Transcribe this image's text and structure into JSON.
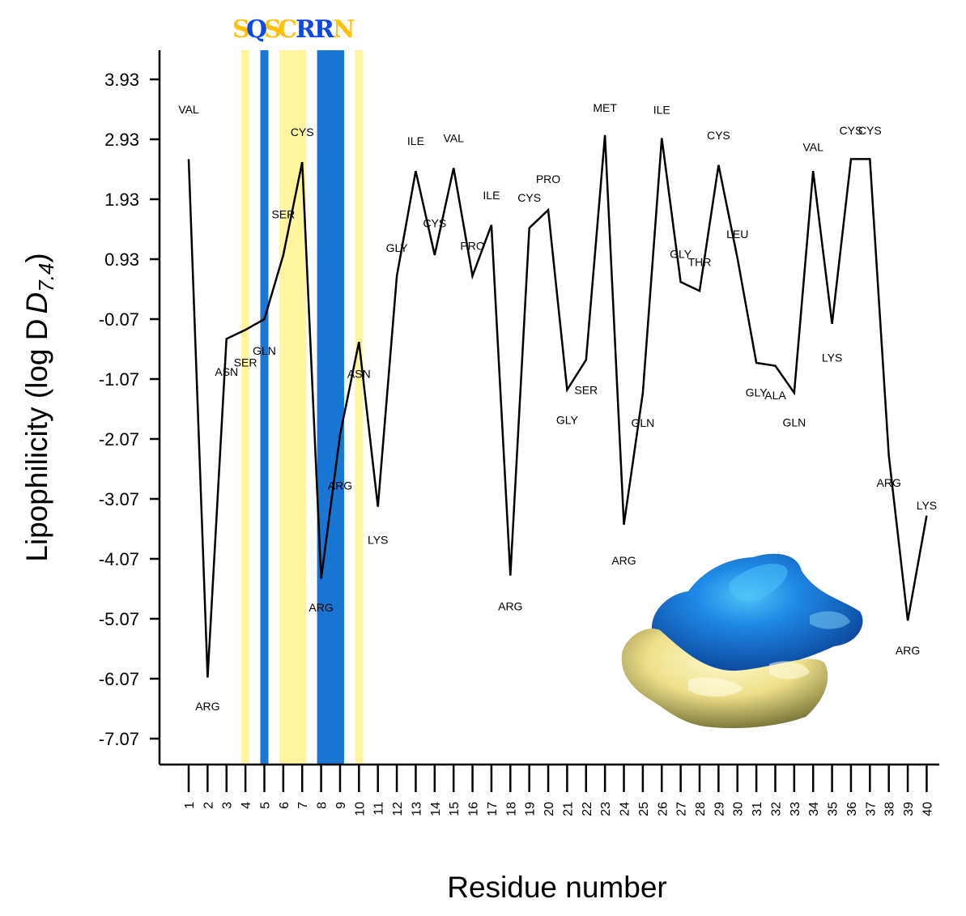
{
  "chart_data": {
    "type": "line",
    "title": "",
    "xlabel": "Residue number",
    "ylabel": "Lipophilicity (log D",
    "ylabel_sub": "7.4",
    "ylabel_close": ")",
    "ylim": [
      -7.5,
      4.4
    ],
    "xlim": [
      1,
      40
    ],
    "y_ticks": [
      3.93,
      2.93,
      1.93,
      0.93,
      -0.07,
      -1.07,
      -2.07,
      -3.07,
      -4.07,
      -5.07,
      -6.07,
      -7.07
    ],
    "y_tick_labels": [
      "3.93",
      "2.93",
      "1.93",
      "0.93",
      "-0.07",
      "-1.07",
      "-2.07",
      "-3.07",
      "-4.07",
      "-5.07",
      "-6.07",
      "-7.07"
    ],
    "x": [
      1,
      2,
      3,
      4,
      5,
      6,
      7,
      8,
      9,
      10,
      11,
      12,
      13,
      14,
      15,
      16,
      17,
      18,
      19,
      20,
      21,
      22,
      23,
      24,
      25,
      26,
      27,
      28,
      29,
      30,
      31,
      32,
      33,
      34,
      35,
      36,
      37,
      38,
      39,
      40
    ],
    "x_tick_labels": [
      "1",
      "2",
      "3",
      "4",
      "5",
      "6",
      "7",
      "8",
      "9",
      "10",
      "11",
      "12",
      "13",
      "14",
      "15",
      "16",
      "17",
      "18",
      "19",
      "20",
      "21",
      "22",
      "23",
      "24",
      "25",
      "26",
      "27",
      "28",
      "29",
      "30",
      "31",
      "32",
      "33",
      "34",
      "35",
      "36",
      "37",
      "38",
      "39",
      "40"
    ],
    "series": [
      {
        "values": [
          2.6,
          -6.05,
          -0.4,
          -0.25,
          -0.07,
          1.0,
          2.55,
          -4.4,
          -2.0,
          -0.45,
          -3.2,
          0.65,
          2.4,
          1.0,
          2.45,
          0.65,
          1.5,
          -4.35,
          1.45,
          1.75,
          -1.25,
          -0.75,
          3.0,
          -3.5,
          -1.3,
          2.95,
          0.55,
          0.4,
          2.5,
          0.95,
          -0.8,
          -0.85,
          -1.3,
          2.4,
          -0.15,
          2.6,
          2.6,
          -2.35,
          -5.1,
          -3.35
        ]
      }
    ],
    "residue_labels": [
      {
        "x": 1,
        "text": "VAL",
        "y": 3.43
      },
      {
        "x": 2,
        "text": "ARG",
        "y": -6.53
      },
      {
        "x": 3,
        "text": "ASN",
        "y": -0.95
      },
      {
        "x": 4,
        "text": "SER",
        "y": -0.79
      },
      {
        "x": 5,
        "text": "GLN",
        "y": -0.6
      },
      {
        "x": 6,
        "text": "SER",
        "y": 1.68
      },
      {
        "x": 7,
        "text": "CYS",
        "y": 3.05
      },
      {
        "x": 8,
        "text": "ARG",
        "y": -4.88
      },
      {
        "x": 9,
        "text": "ARG",
        "y": -2.85
      },
      {
        "x": 10,
        "text": "ASN",
        "y": -0.98
      },
      {
        "x": 11,
        "text": "LYS",
        "y": -3.75
      },
      {
        "x": 12,
        "text": "GLY",
        "y": 1.12
      },
      {
        "x": 13,
        "text": "ILE",
        "y": 2.9
      },
      {
        "x": 14,
        "text": "CYS",
        "y": 1.53
      },
      {
        "x": 15,
        "text": "VAL",
        "y": 2.95
      },
      {
        "x": 16,
        "text": "PRO",
        "y": 1.15
      },
      {
        "x": 17,
        "text": "ILE",
        "y": 2.0
      },
      {
        "x": 18,
        "text": "ARG",
        "y": -4.86
      },
      {
        "x": 19,
        "text": "CYS",
        "y": 1.96
      },
      {
        "x": 20,
        "text": "PRO",
        "y": 2.27
      },
      {
        "x": 21,
        "text": "GLY",
        "y": -1.75
      },
      {
        "x": 22,
        "text": "SER",
        "y": -1.25
      },
      {
        "x": 23,
        "text": "MET",
        "y": 3.46
      },
      {
        "x": 24,
        "text": "ARG",
        "y": -4.1
      },
      {
        "x": 25,
        "text": "GLN",
        "y": -1.8
      },
      {
        "x": 26,
        "text": "ILE",
        "y": 3.42
      },
      {
        "x": 27,
        "text": "GLY",
        "y": 1.02
      },
      {
        "x": 28,
        "text": "THR",
        "y": 0.88
      },
      {
        "x": 29,
        "text": "CYS",
        "y": 3.0
      },
      {
        "x": 30,
        "text": "LEU",
        "y": 1.35
      },
      {
        "x": 31,
        "text": "GLY",
        "y": -1.29
      },
      {
        "x": 32,
        "text": "ALA",
        "y": -1.34
      },
      {
        "x": 33,
        "text": "GLN",
        "y": -1.79
      },
      {
        "x": 34,
        "text": "VAL",
        "y": 2.8
      },
      {
        "x": 35,
        "text": "LYS",
        "y": -0.71
      },
      {
        "x": 36,
        "text": "CYS",
        "y": 3.08
      },
      {
        "x": 37,
        "text": "CYS",
        "y": 3.08
      },
      {
        "x": 38,
        "text": "ARG",
        "y": -2.8
      },
      {
        "x": 39,
        "text": "ARG",
        "y": -5.6
      },
      {
        "x": 40,
        "text": "LYS",
        "y": -3.18
      }
    ],
    "highlight_bands": [
      {
        "x_from": 4,
        "x_to": 4,
        "color": "#fff59d"
      },
      {
        "x_from": 5,
        "x_to": 5,
        "color": "#1976d2"
      },
      {
        "x_from": 6,
        "x_to": 7,
        "color": "#fff59d"
      },
      {
        "x_from": 8,
        "x_to": 9,
        "color": "#1976d2"
      },
      {
        "x_from": 10,
        "x_to": 10,
        "color": "#fff59d"
      }
    ],
    "sequence_letters": [
      {
        "text": "S",
        "color": "#ffc107"
      },
      {
        "text": "Q",
        "color": "#0d47e8"
      },
      {
        "text": "S",
        "color": "#ffc107"
      },
      {
        "text": "C",
        "color": "#ffc107"
      },
      {
        "text": "R",
        "color": "#0d47e8"
      },
      {
        "text": "R",
        "color": "#0d47e8"
      },
      {
        "text": "N",
        "color": "#ffc107"
      }
    ],
    "colors": {
      "line": "#000000",
      "hydrophobic_band": "#fff59d",
      "hydrophilic_band": "#1976d2",
      "surface_blue": "#1565c0",
      "surface_yellow": "#f0e68c"
    },
    "grid": false
  }
}
